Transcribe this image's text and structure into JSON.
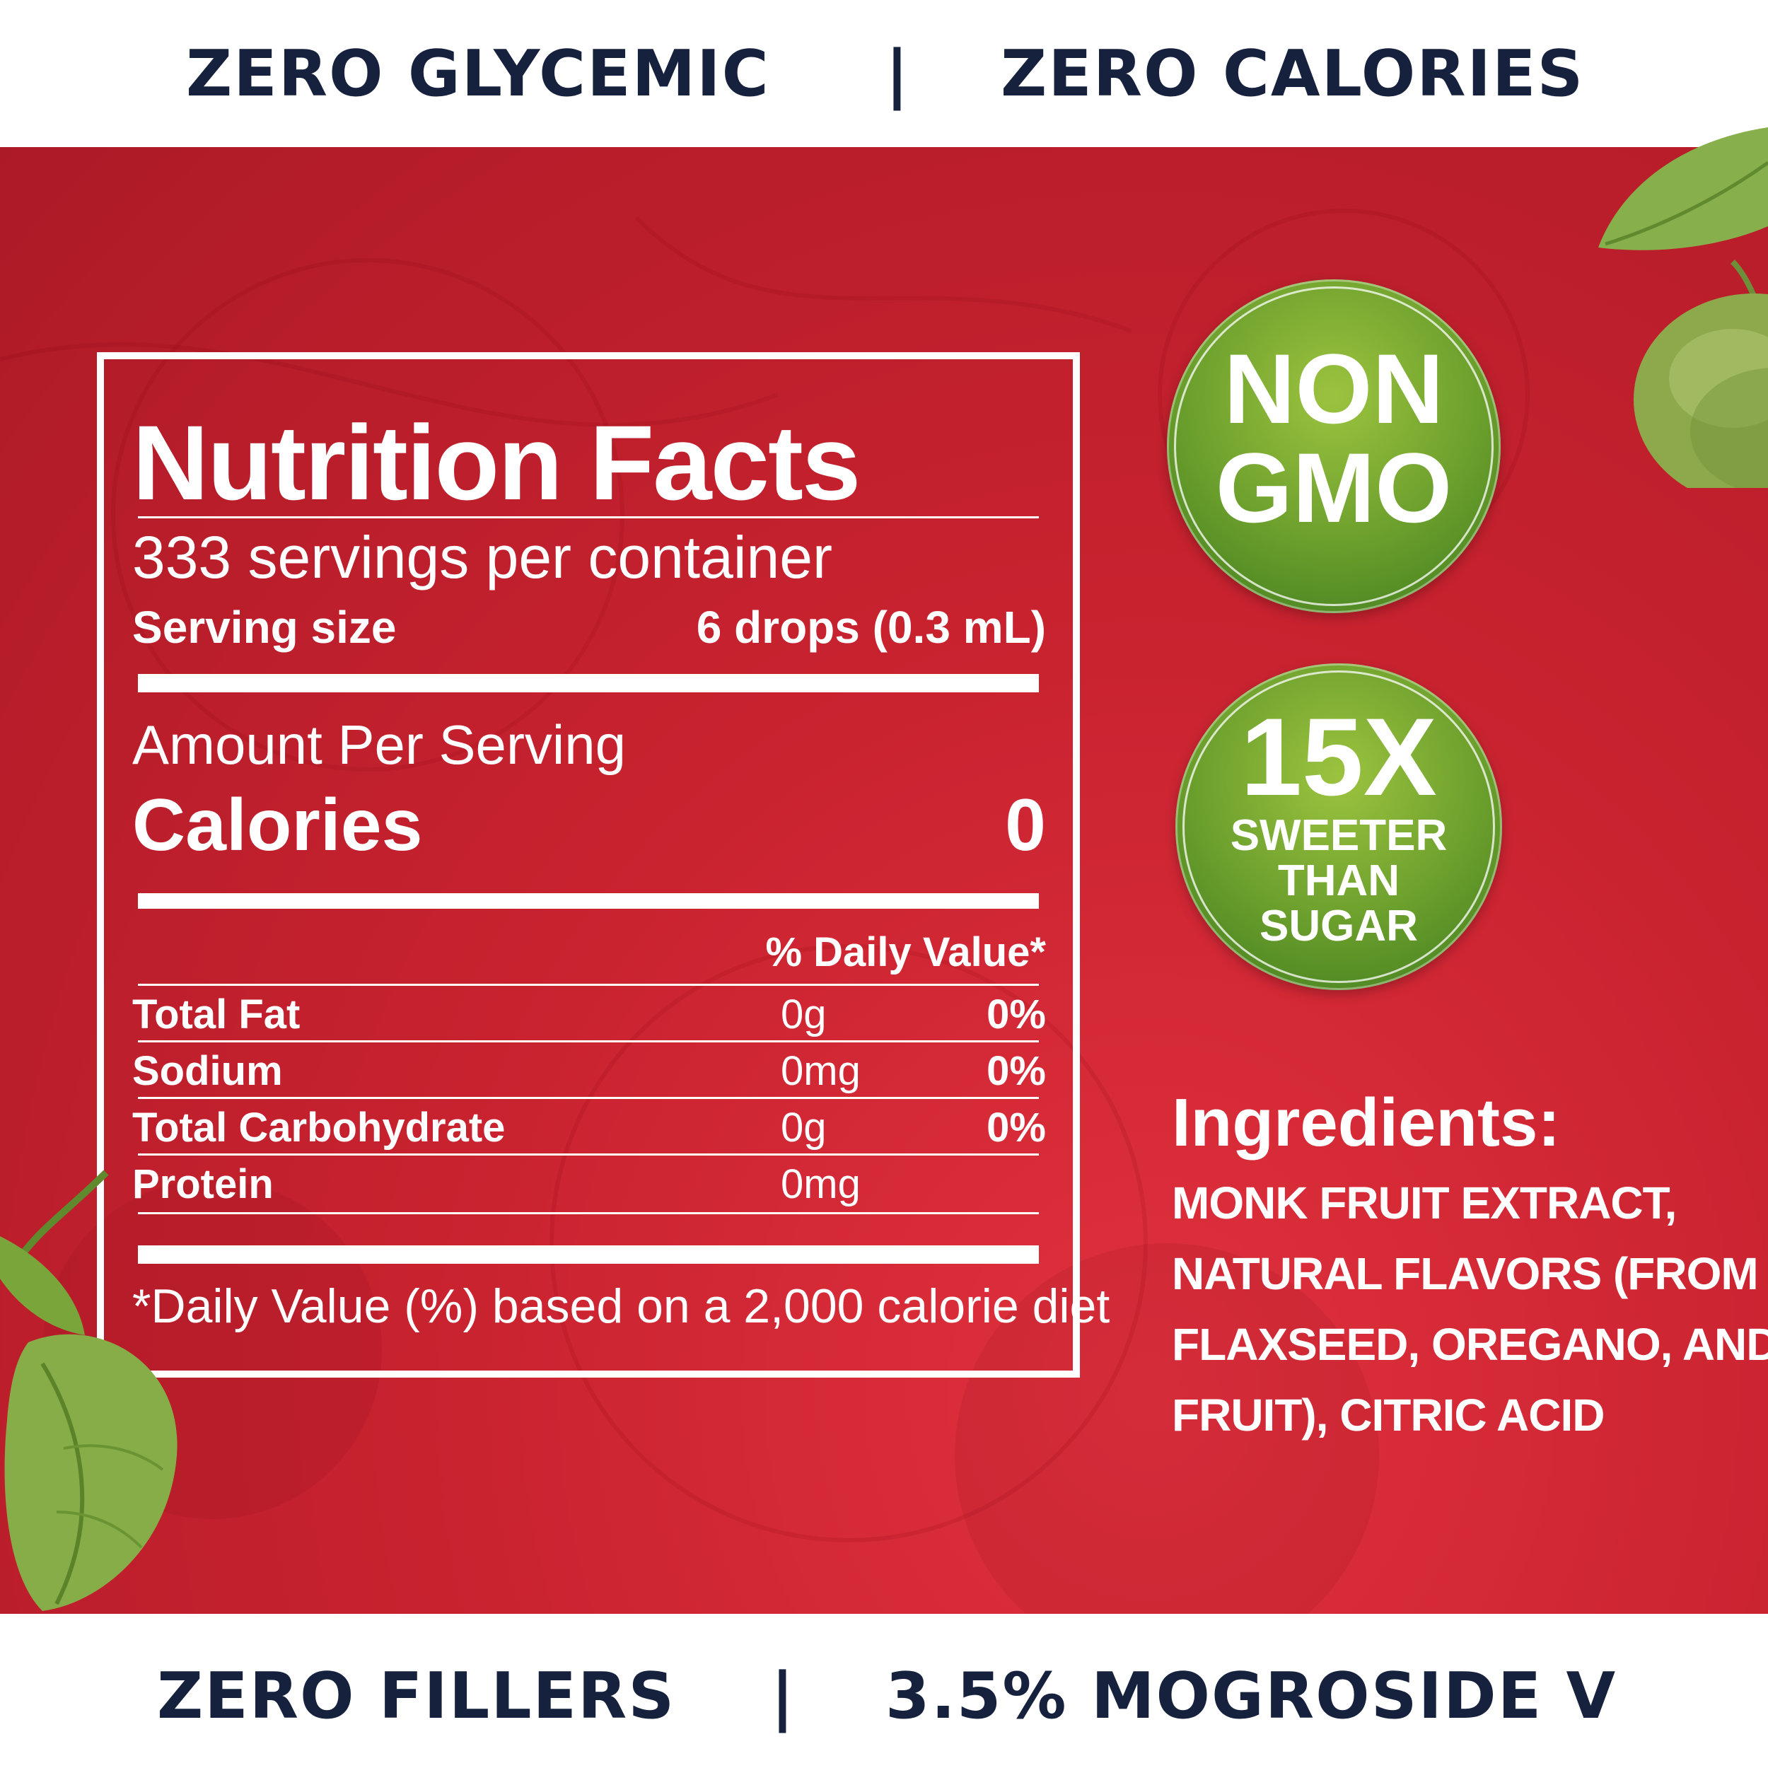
{
  "top_band": {
    "left": "ZERO GLYCEMIC",
    "divider": "|",
    "right": "ZERO CALORIES"
  },
  "bottom_band": {
    "left": "ZERO FILLERS",
    "divider": "|",
    "right": "3.5% MOGROSIDE V"
  },
  "colors": {
    "navy_text": "#16213d",
    "panel_red": "#c8222f",
    "badge_green": "#6a9e2c",
    "white": "#ffffff"
  },
  "nutrition": {
    "title": "Nutrition Facts",
    "servings": "333 servings per container",
    "serving_size_label": "Serving size",
    "serving_size_value": "6 drops (0.3 mL)",
    "amount_per_serving": "Amount Per Serving",
    "calories_label": "Calories",
    "calories_value": "0",
    "daily_value_header": "% Daily Value*",
    "rows": [
      {
        "name": "Total Fat",
        "amount": "0g",
        "dv": "0%"
      },
      {
        "name": "Sodium",
        "amount": "0mg",
        "dv": "0%"
      },
      {
        "name": "Total Carbohydrate",
        "amount": "0g",
        "dv": "0%"
      },
      {
        "name": "Protein",
        "amount": "0mg",
        "dv": ""
      }
    ],
    "footnote": "*Daily Value (%) based on a 2,000 calorie diet"
  },
  "badges": {
    "non_gmo": {
      "line1": "NON",
      "line2": "GMO"
    },
    "sweeter": {
      "line1": "15X",
      "line2": "SWEETER",
      "line3": "THAN",
      "line4": "SUGAR"
    }
  },
  "ingredients": {
    "heading": "Ingredients:",
    "lines": [
      "MONK FRUIT EXTRACT,",
      "NATURAL FLAVORS (FROM",
      "FLAXSEED, OREGANO, AND",
      "FRUIT), CITRIC ACID"
    ]
  },
  "decor": {
    "top_right": "monk-fruit-with-leaf",
    "bottom_left": "leaves"
  }
}
